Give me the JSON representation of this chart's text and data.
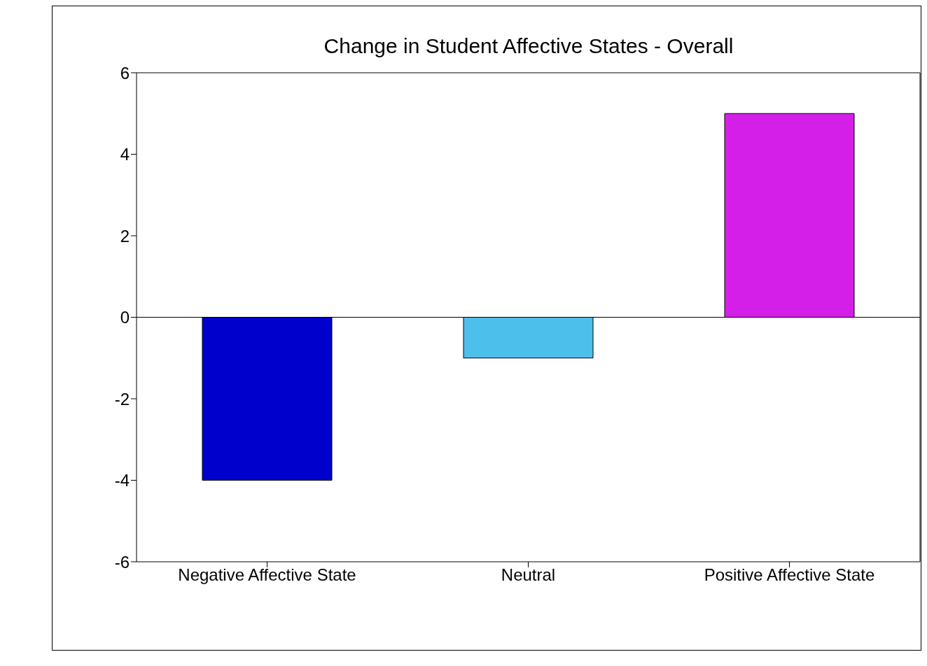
{
  "chart_data": {
    "type": "bar",
    "title": "Change in Student Affective States - Overall",
    "categories": [
      "Negative Affective State",
      "Neutral",
      "Positive Affective State"
    ],
    "values": [
      -4,
      -1,
      5
    ],
    "colors": [
      "#0000cc",
      "#4dbfeb",
      "#d41fe8"
    ],
    "ylim": [
      -6,
      6
    ],
    "yticks": [
      -6,
      -4,
      -2,
      0,
      2,
      4,
      6
    ],
    "ref_lines": [
      {
        "axis": "y",
        "value": 0,
        "color": "#000000"
      }
    ],
    "grid": false,
    "legend": false
  }
}
